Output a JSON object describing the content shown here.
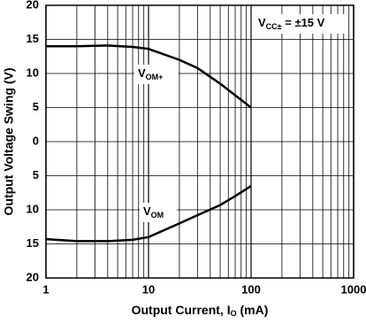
{
  "chart_data": {
    "type": "line",
    "x_label": {
      "text": "Output Current, I",
      "sub": "O",
      "tail": " (mA)"
    },
    "y_label": "Output Voltage Swing (V)",
    "annotation": {
      "text": "V",
      "sub": "CC±",
      "tail": " = ±15 V"
    },
    "xlog": true,
    "grid": true,
    "color": "#000000",
    "xlim": [
      1,
      1000
    ],
    "xticks": [
      1,
      10,
      100,
      1000
    ],
    "xminorticks": [
      2,
      3,
      4,
      5,
      6,
      7,
      8,
      9,
      20,
      30,
      40,
      50,
      60,
      70,
      80,
      90,
      200,
      300,
      400,
      500,
      600,
      700,
      800,
      900
    ],
    "ylim": [
      -20,
      20
    ],
    "yticks": [
      {
        "value": -20,
        "label": "20"
      },
      {
        "value": -15,
        "label": "15"
      },
      {
        "value": -10,
        "label": "10"
      },
      {
        "value": -5,
        "label": "5"
      },
      0,
      5,
      10,
      15,
      20
    ],
    "x": [
      1,
      2,
      4,
      7,
      10,
      20,
      30,
      50,
      70,
      100
    ],
    "series": [
      {
        "label": {
          "text": "V",
          "sub": "OM+"
        },
        "values": [
          14,
          14,
          14.1,
          13.9,
          13.6,
          12,
          10.8,
          8.5,
          6.8,
          5
        ]
      },
      {
        "label": {
          "text": "V",
          "sub": "OM"
        },
        "values": [
          -14.3,
          -14.6,
          -14.6,
          -14.4,
          -14,
          -12,
          -10.8,
          -9.3,
          -8,
          -6.5
        ]
      }
    ]
  }
}
